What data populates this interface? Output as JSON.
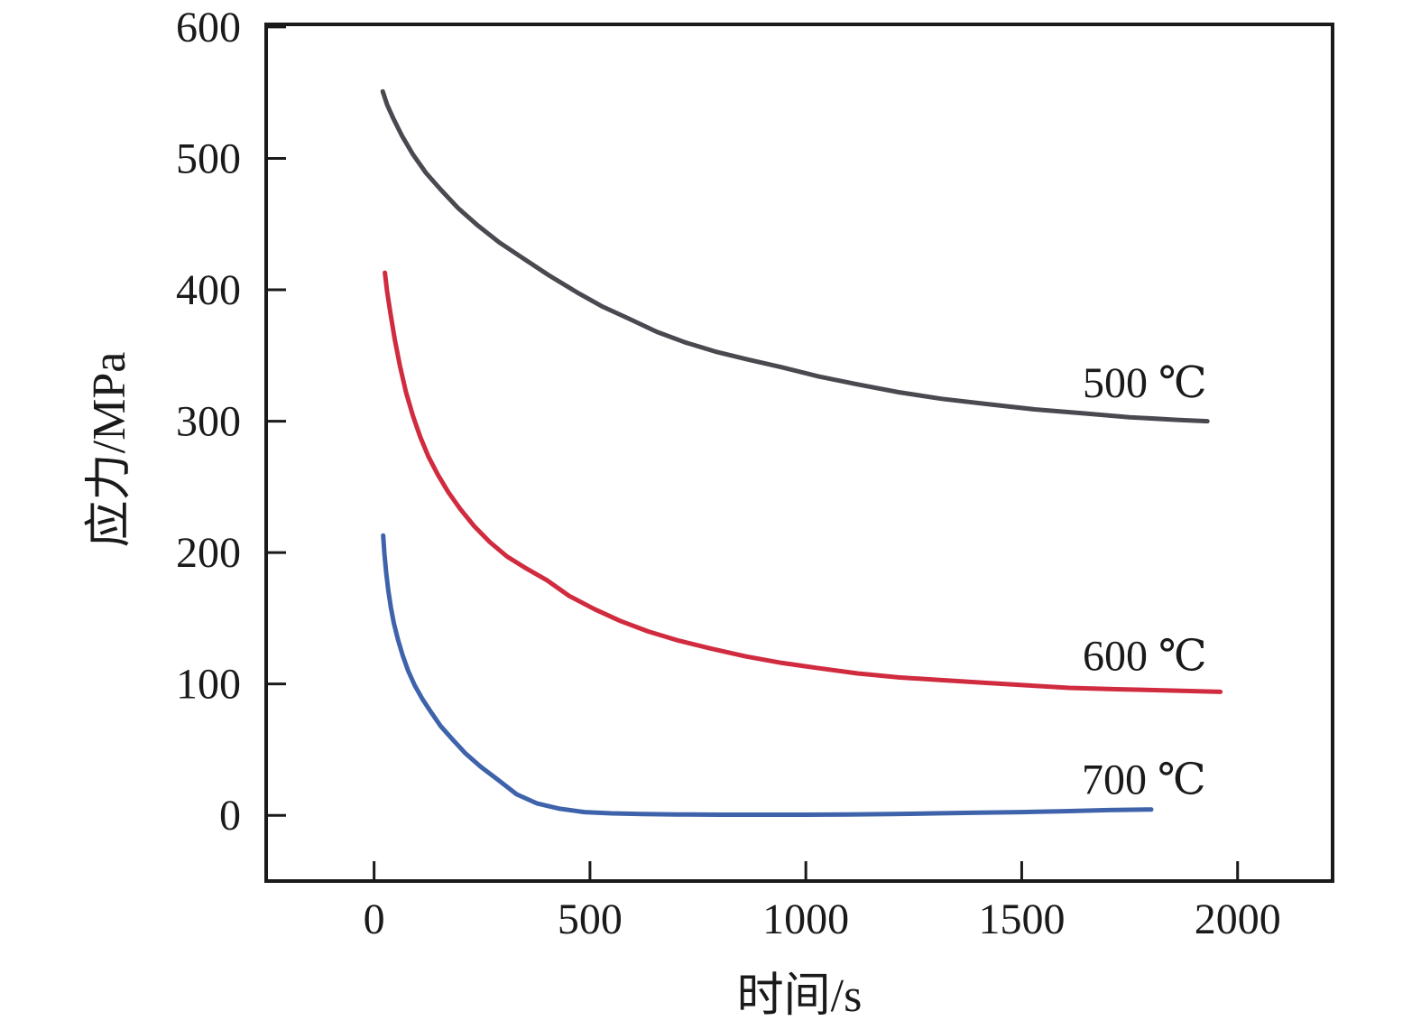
{
  "figure": {
    "background": "#ffffff",
    "axis_color": "#1a1a1a"
  },
  "chart_data": {
    "type": "line",
    "title": "",
    "xlabel": "时间/s",
    "ylabel": "应力/MPa",
    "xlim": [
      -250,
      2220
    ],
    "ylim": [
      -50,
      602
    ],
    "xticks": [
      0,
      500,
      1000,
      1500,
      2000
    ],
    "yticks": [
      0,
      100,
      200,
      300,
      400,
      500,
      600
    ],
    "grid": false,
    "frame": true,
    "legend_position": "inline-labels",
    "series": [
      {
        "name": "500 ℃",
        "color": "#4a4950",
        "points": [
          [
            20,
            551
          ],
          [
            30,
            541
          ],
          [
            45,
            530
          ],
          [
            65,
            517
          ],
          [
            90,
            503
          ],
          [
            120,
            489
          ],
          [
            155,
            476
          ],
          [
            195,
            462
          ],
          [
            240,
            449
          ],
          [
            290,
            436
          ],
          [
            345,
            424
          ],
          [
            405,
            411
          ],
          [
            470,
            398
          ],
          [
            530,
            387
          ],
          [
            590,
            378
          ],
          [
            655,
            368
          ],
          [
            720,
            360
          ],
          [
            790,
            353
          ],
          [
            865,
            347
          ],
          [
            945,
            341
          ],
          [
            1030,
            334
          ],
          [
            1120,
            328
          ],
          [
            1215,
            322
          ],
          [
            1315,
            317
          ],
          [
            1420,
            313
          ],
          [
            1530,
            309
          ],
          [
            1640,
            306
          ],
          [
            1750,
            303
          ],
          [
            1860,
            301
          ],
          [
            1930,
            300
          ]
        ]
      },
      {
        "name": "600 ℃",
        "color": "#d02b3e",
        "points": [
          [
            25,
            413
          ],
          [
            30,
            399
          ],
          [
            38,
            382
          ],
          [
            48,
            362
          ],
          [
            60,
            342
          ],
          [
            74,
            322
          ],
          [
            90,
            304
          ],
          [
            107,
            288
          ],
          [
            126,
            273
          ],
          [
            148,
            259
          ],
          [
            172,
            246
          ],
          [
            200,
            233
          ],
          [
            232,
            220
          ],
          [
            268,
            208
          ],
          [
            308,
            197
          ],
          [
            352,
            188
          ],
          [
            400,
            179
          ],
          [
            452,
            167
          ],
          [
            510,
            157
          ],
          [
            570,
            148
          ],
          [
            635,
            140
          ],
          [
            705,
            133
          ],
          [
            780,
            127
          ],
          [
            860,
            121
          ],
          [
            945,
            116
          ],
          [
            1030,
            112
          ],
          [
            1120,
            108
          ],
          [
            1215,
            105
          ],
          [
            1310,
            103
          ],
          [
            1410,
            101
          ],
          [
            1510,
            99
          ],
          [
            1610,
            97
          ],
          [
            1720,
            96
          ],
          [
            1840,
            95
          ],
          [
            1960,
            94
          ]
        ]
      },
      {
        "name": "700 ℃",
        "color": "#3e63ab",
        "points": [
          [
            21,
            213
          ],
          [
            24,
            199
          ],
          [
            28,
            185
          ],
          [
            33,
            171
          ],
          [
            39,
            158
          ],
          [
            46,
            146
          ],
          [
            55,
            134
          ],
          [
            66,
            122
          ],
          [
            79,
            110
          ],
          [
            94,
            99
          ],
          [
            111,
            89
          ],
          [
            131,
            79
          ],
          [
            154,
            68
          ],
          [
            181,
            58
          ],
          [
            212,
            47
          ],
          [
            247,
            37
          ],
          [
            287,
            27
          ],
          [
            330,
            16
          ],
          [
            378,
            9
          ],
          [
            430,
            5
          ],
          [
            487,
            2.5
          ],
          [
            550,
            1.5
          ],
          [
            620,
            1
          ],
          [
            700,
            0.7
          ],
          [
            800,
            0.5
          ],
          [
            900,
            0.5
          ],
          [
            1000,
            0.5
          ],
          [
            1100,
            0.7
          ],
          [
            1200,
            1
          ],
          [
            1300,
            1.5
          ],
          [
            1400,
            2
          ],
          [
            1500,
            2.5
          ],
          [
            1600,
            3.2
          ],
          [
            1700,
            4
          ],
          [
            1800,
            4.5
          ]
        ]
      }
    ],
    "annotations": [
      {
        "text": "500 ℃",
        "x": 1785,
        "y": 330
      },
      {
        "text": "600 ℃",
        "x": 1785,
        "y": 122
      },
      {
        "text": "700 ℃",
        "x": 1783,
        "y": 28
      }
    ]
  }
}
